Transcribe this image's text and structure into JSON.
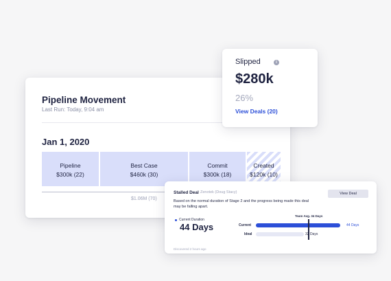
{
  "pipeline": {
    "title": "Pipeline Movement",
    "last_run": "Last Run: Today, 9:04 am",
    "date": "Jan 1, 2020",
    "stages": [
      {
        "label": "Pipeline",
        "value": "$300k (22)"
      },
      {
        "label": "Best Case",
        "value": "$460k (30)"
      },
      {
        "label": "Commit",
        "value": "$300k (18)"
      },
      {
        "label": "Created",
        "value": "$120k (10)"
      }
    ],
    "total": "$1.06M (70)"
  },
  "slipped": {
    "label": "Slipped",
    "info_icon": "i",
    "amount": "$280k",
    "percent": "26%",
    "link": "View Deals (20)"
  },
  "stalled": {
    "title": "Stalled Deal",
    "subtitle": "Zenotek (Doug Stacy)",
    "button": "View Deal",
    "description": "Based on the normal duration of Stage 2 and the progress being made this deal may be falling apart.",
    "current_duration_label": "Current Duration",
    "days": "44 Days",
    "team_avg": "Team Avg. 34 Days",
    "rows": [
      {
        "label": "Current",
        "value": "44 Days"
      },
      {
        "label": "Ideal",
        "value": "32 Days"
      }
    ],
    "detected": "Discovered 2 hours ago"
  },
  "colors": {
    "accent": "#2c4fd8",
    "stage_fill": "#d9defa",
    "text": "#1e2240"
  }
}
